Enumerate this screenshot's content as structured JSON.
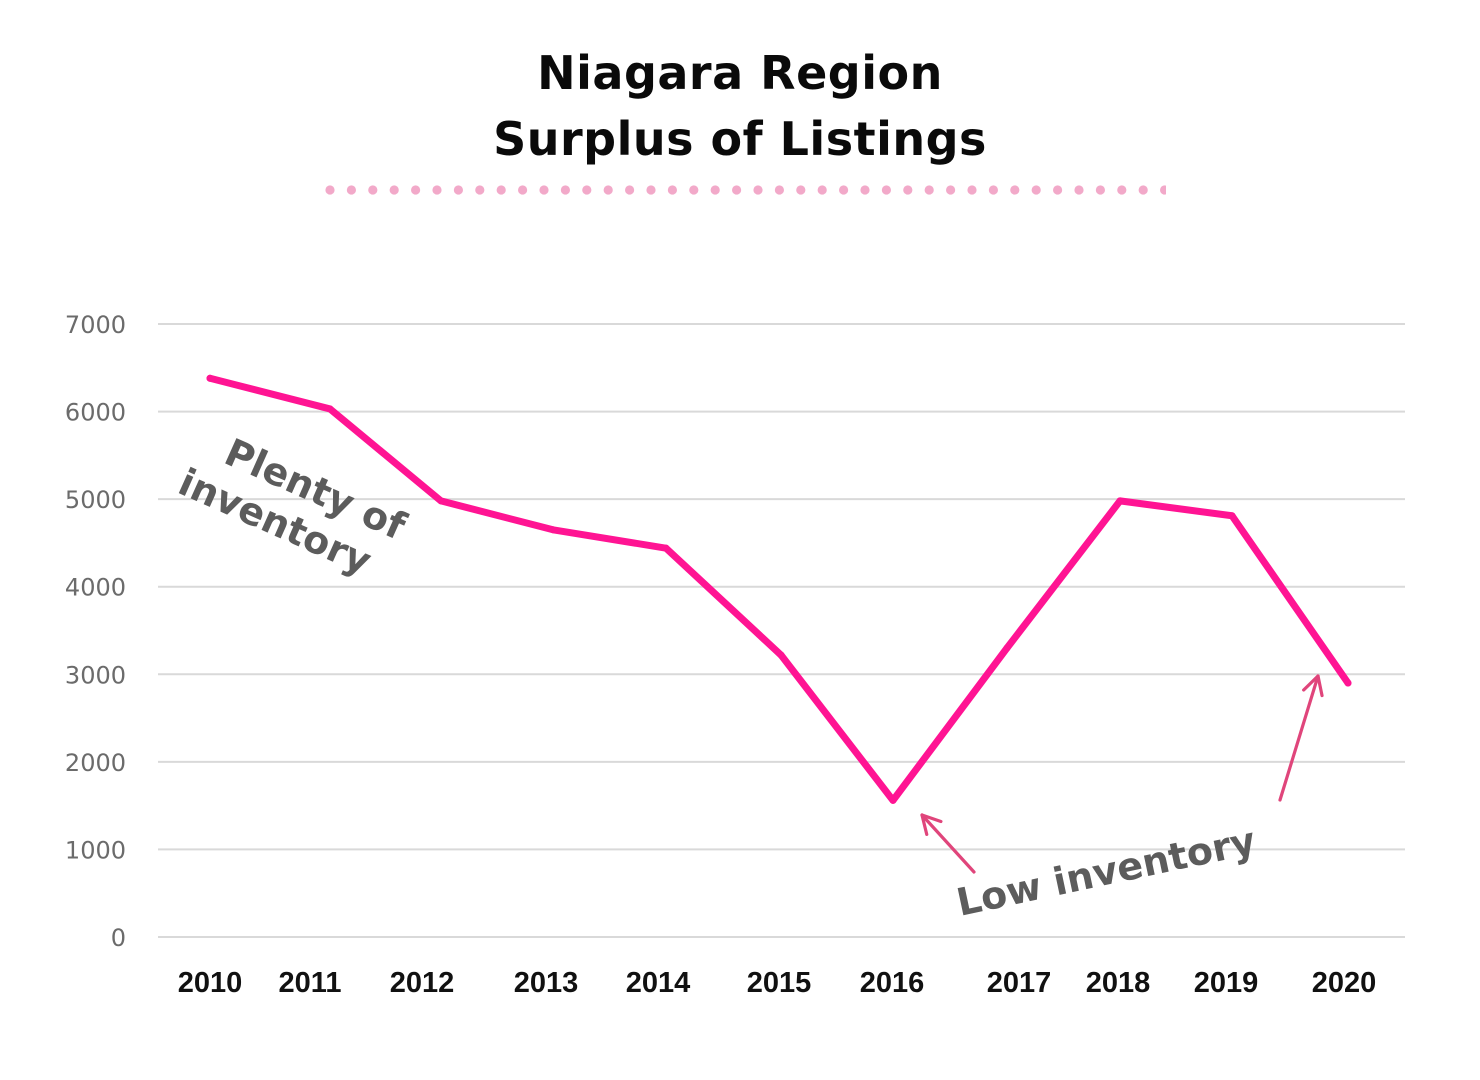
{
  "title": {
    "line1": "Niagara Region",
    "line2": "Surplus of Listings"
  },
  "colors": {
    "line": "#ff1493",
    "arrow": "#e0457b",
    "dots": "#f2a9c9",
    "grid": "#d9d9d9",
    "annotation": "#5c5c5c"
  },
  "chart_data": {
    "type": "line",
    "title": "Niagara Region Surplus of Listings",
    "xlabel": "",
    "ylabel": "",
    "categories": [
      "2010",
      "2011",
      "2012",
      "2013",
      "2014",
      "2015",
      "2016",
      "2017",
      "2018",
      "2019",
      "2020"
    ],
    "series": [
      {
        "values": [
          6380,
          6030,
          4980,
          4650,
          4440,
          3220,
          1560,
          3300,
          4980,
          4810,
          2900
        ]
      }
    ],
    "ylim": [
      0,
      7000
    ],
    "yticks": [
      "0",
      "1000",
      "2000",
      "3000",
      "4000",
      "5000",
      "6000",
      "7000"
    ],
    "grid": true,
    "legend": "none",
    "annotations": [
      {
        "lines": [
          "Plenty of",
          "inventory"
        ],
        "near": "2011"
      },
      {
        "text": "Low inventory",
        "points_to": [
          "2016",
          "2020"
        ]
      }
    ]
  }
}
